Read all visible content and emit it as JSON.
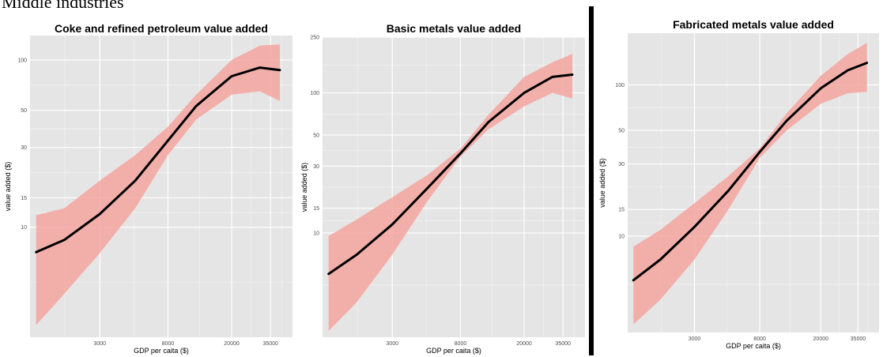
{
  "header": {
    "text": "Middle industries"
  },
  "colors": {
    "panel_bg": "#e5e5e5",
    "grid": "#ffffff",
    "band": "#f4a6a0",
    "line": "#000000"
  },
  "chart_data": [
    {
      "type": "line",
      "title": "Coke and refined petroleum value added",
      "xlabel": "GDP per caita ($)",
      "ylabel": "value added ($)",
      "x_scale": "log",
      "y_scale": "log",
      "xlim": [
        1100,
        48000
      ],
      "ylim": [
        2.2,
        140
      ],
      "xticks": [
        3000,
        8000,
        20000,
        35000
      ],
      "yticks": [
        10,
        15,
        30,
        50,
        100
      ],
      "series": [
        {
          "x": [
            1200,
            1800,
            3000,
            5000,
            8000,
            12000,
            20000,
            30000,
            40000
          ],
          "y": [
            7.1,
            8.4,
            12,
            19,
            33,
            53,
            80,
            90,
            87
          ],
          "lower": [
            2.6,
            4,
            7,
            13,
            27,
            44,
            62,
            65,
            57
          ],
          "upper": [
            11.8,
            13,
            19,
            27,
            40,
            62,
            100,
            122,
            124
          ]
        }
      ]
    },
    {
      "type": "line",
      "title": "Basic metals value added",
      "xlabel": "GDP per caita ($)",
      "ylabel": "value added ($)",
      "x_scale": "log",
      "y_scale": "log",
      "xlim": [
        1100,
        48000
      ],
      "ylim": [
        1.8,
        250
      ],
      "xticks": [
        3000,
        8000,
        20000,
        35000
      ],
      "yticks": [
        10,
        15,
        30,
        50,
        100,
        250
      ],
      "series": [
        {
          "x": [
            1200,
            1800,
            3000,
            5000,
            8000,
            12000,
            20000,
            30000,
            40000
          ],
          "y": [
            5.1,
            7,
            11.5,
            21,
            37,
            62,
            100,
            130,
            135
          ],
          "lower": [
            2,
            3.2,
            7,
            17,
            35,
            55,
            80,
            100,
            91
          ],
          "upper": [
            9.5,
            12.5,
            18,
            26,
            40,
            70,
            130,
            165,
            190
          ]
        }
      ]
    },
    {
      "type": "line",
      "title": "Fabricated metals value added",
      "xlabel": "GDP per caita ($)",
      "ylabel": "value added ($)",
      "x_scale": "log",
      "y_scale": "log",
      "xlim": [
        1100,
        48000
      ],
      "ylim": [
        2.3,
        220
      ],
      "xticks": [
        3000,
        8000,
        20000,
        35000
      ],
      "yticks": [
        10,
        15,
        30,
        50,
        100
      ],
      "series": [
        {
          "x": [
            1200,
            1800,
            3000,
            5000,
            8000,
            12000,
            20000,
            30000,
            40000
          ],
          "y": [
            5.1,
            7,
            11.5,
            20,
            36,
            58,
            95,
            125,
            140
          ],
          "lower": [
            2.6,
            3.8,
            7,
            15,
            33,
            50,
            75,
            88,
            90
          ],
          "upper": [
            8.5,
            11,
            16.5,
            25,
            38,
            65,
            115,
            160,
            190
          ]
        }
      ]
    }
  ]
}
